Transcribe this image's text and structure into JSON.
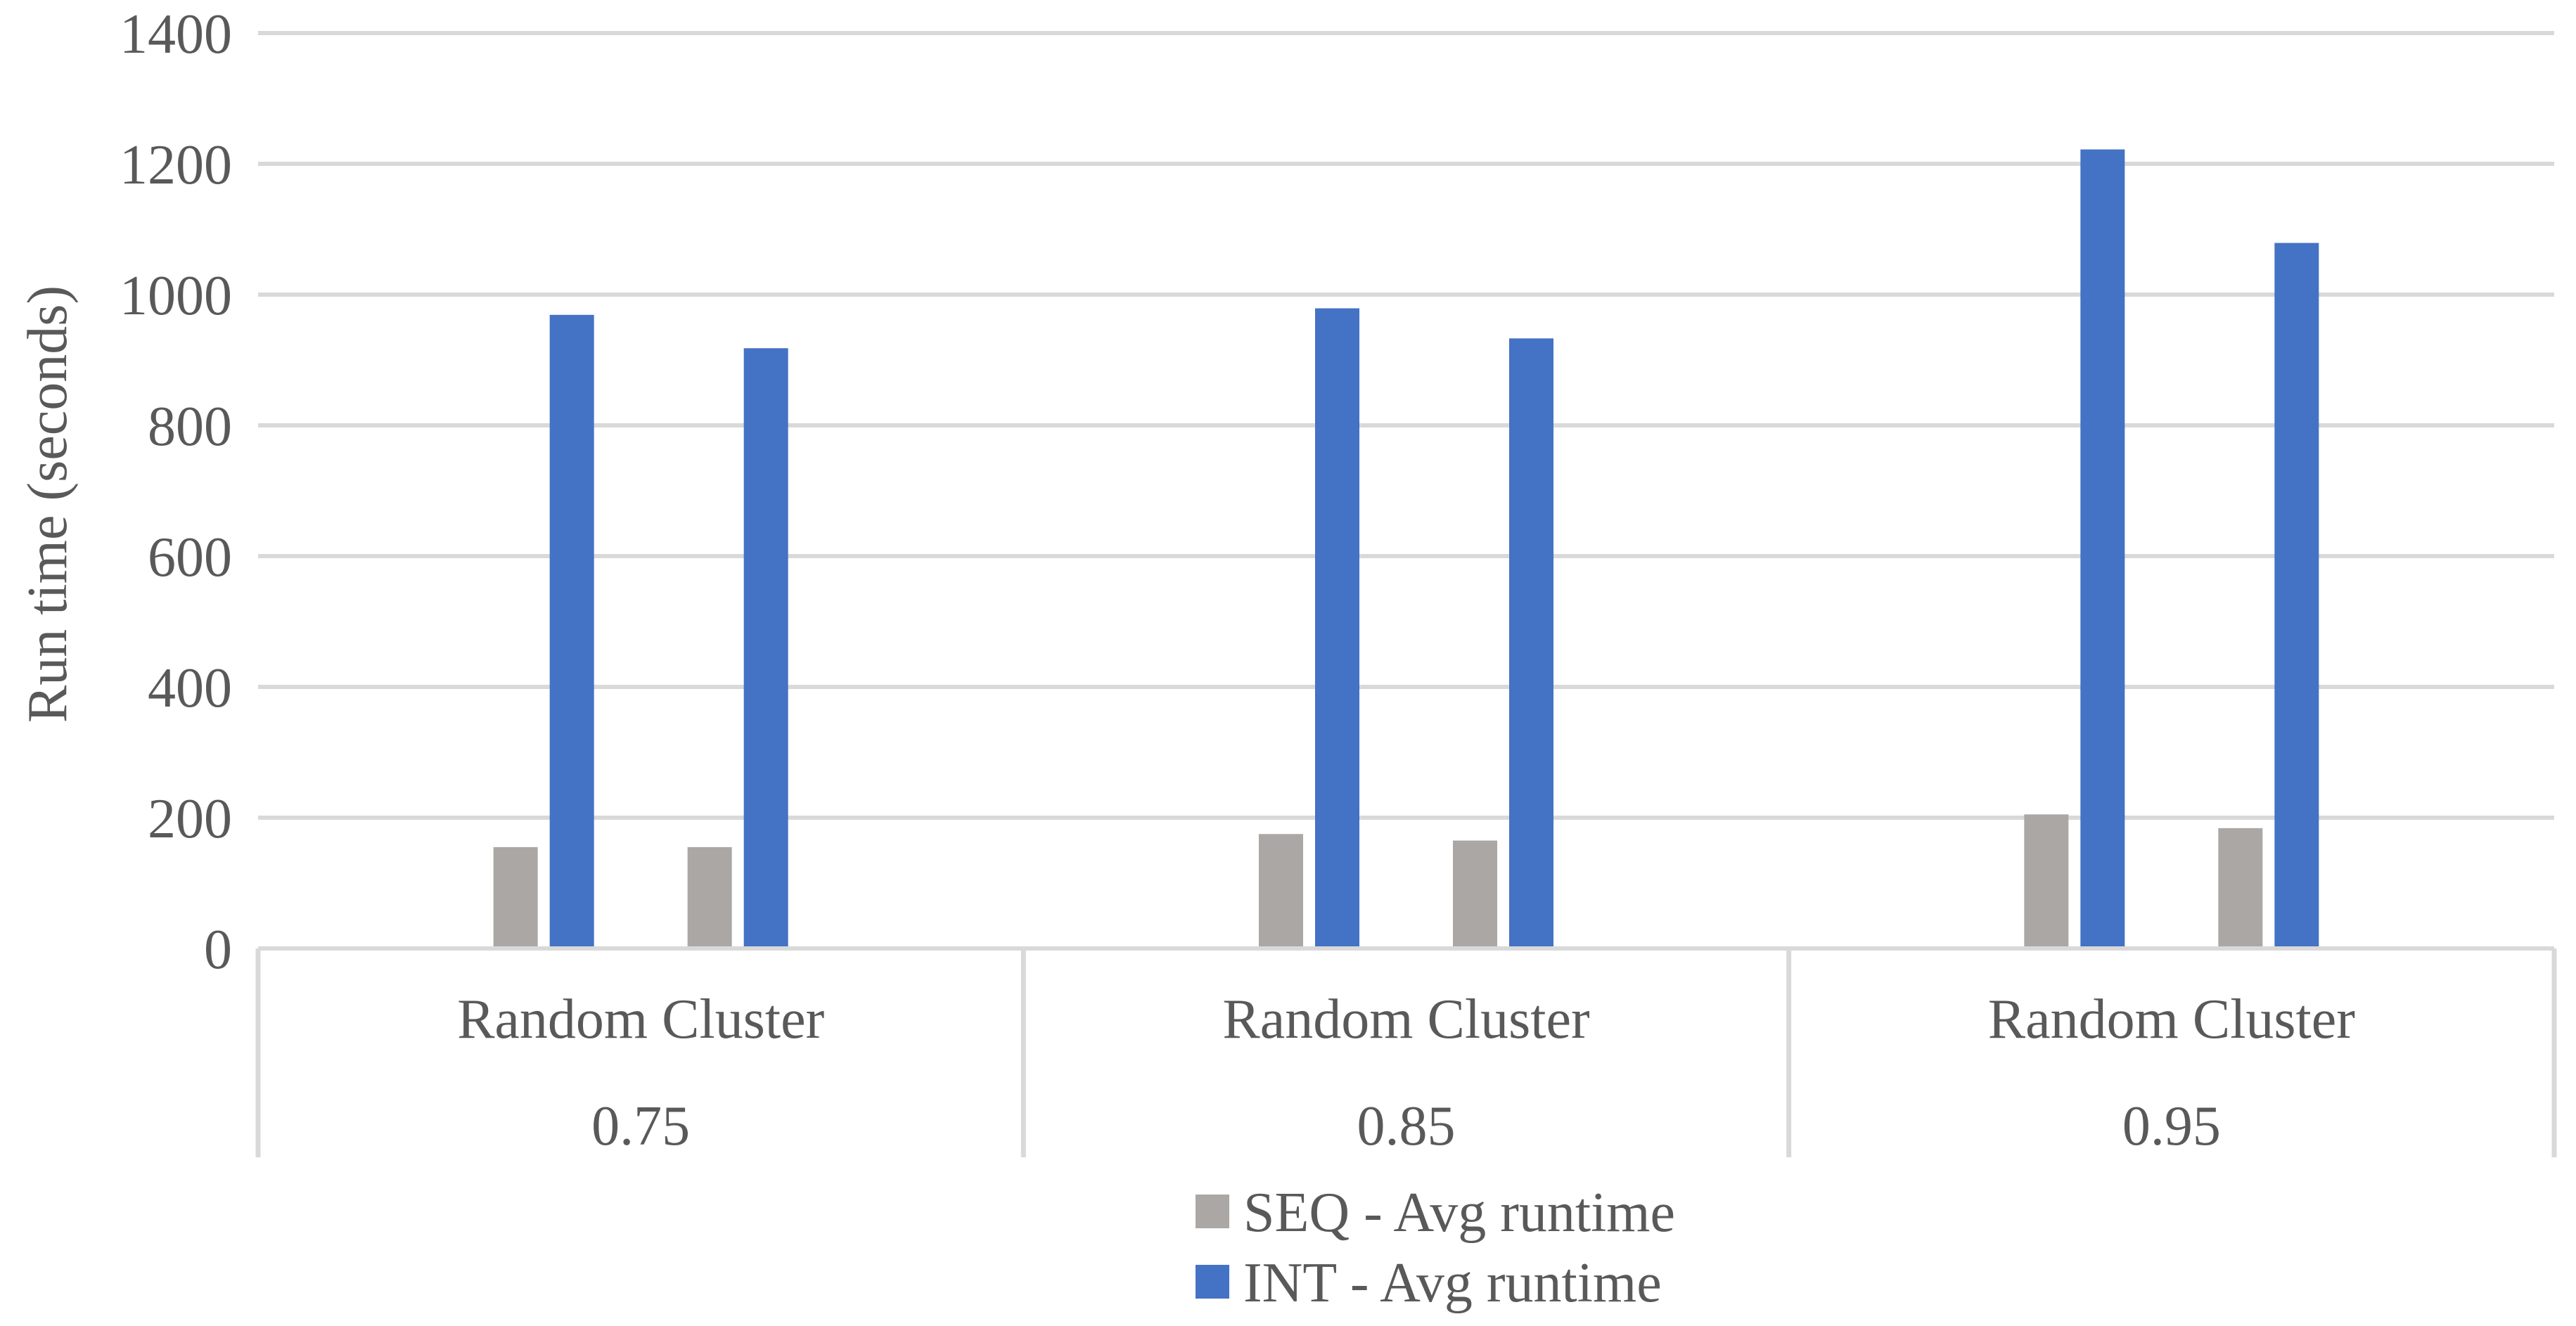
{
  "chart_data": {
    "type": "bar",
    "title": "",
    "ylabel": "Run time (seconds)",
    "xlabel": "",
    "ylim": [
      0,
      1400
    ],
    "ytick_step": 200,
    "yticks": [
      0,
      200,
      400,
      600,
      800,
      1000,
      1200,
      1400
    ],
    "grid": true,
    "legend_position": "bottom",
    "bars_per_group_per_series": 2,
    "groups": [
      {
        "label": "Random Cluster",
        "sublabel": "0.75"
      },
      {
        "label": "Random Cluster",
        "sublabel": "0.85"
      },
      {
        "label": "Random Cluster",
        "sublabel": "0.95"
      }
    ],
    "series": [
      {
        "name": "SEQ - Avg runtime",
        "color": "#ABA7A5",
        "values": [
          [
            155,
            155
          ],
          [
            175,
            165
          ],
          [
            205,
            184
          ]
        ]
      },
      {
        "name": "INT - Avg runtime",
        "color": "#4472C4",
        "values": [
          [
            969,
            918
          ],
          [
            979,
            933
          ],
          [
            1222,
            1079
          ]
        ]
      }
    ]
  },
  "colors": {
    "background": "#FFFFFF",
    "text": "#595959",
    "gridline": "#D9D9D9",
    "axis_border": "#D9D9D9"
  }
}
